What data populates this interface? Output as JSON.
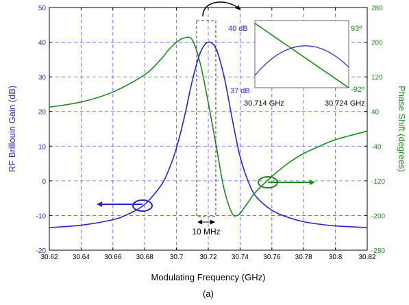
{
  "chart_data": {
    "type": "line",
    "title": "",
    "caption": "(a)",
    "xlabel": "Modulating Frequency (GHz)",
    "ylabel_left": "RF Brillouin Gain (dB)",
    "ylabel_right": "Phase Shift (degrees)",
    "xlim": [
      30.62,
      30.82
    ],
    "ylim_left": [
      -20,
      50
    ],
    "ylim_right": [
      -280,
      280
    ],
    "x_ticks": [
      "30.62",
      "30.64",
      "30.66",
      "30.68",
      "30.7",
      "30.72",
      "30.74",
      "30.76",
      "30.78",
      "30.8",
      "30.82"
    ],
    "x_tick_values": [
      30.62,
      30.64,
      30.66,
      30.68,
      30.7,
      30.72,
      30.74,
      30.76,
      30.78,
      30.8,
      30.82
    ],
    "y_left_ticks": [
      "-20",
      "-10",
      "0",
      "10",
      "20",
      "30",
      "40",
      "50"
    ],
    "y_left_tick_values": [
      -20,
      -10,
      0,
      10,
      20,
      30,
      40,
      50
    ],
    "y_right_ticks": [
      "-280",
      "-200",
      "-120",
      "-40",
      "40",
      "120",
      "200",
      "280"
    ],
    "y_right_tick_values": [
      -280,
      -200,
      -120,
      -40,
      40,
      120,
      200,
      280
    ],
    "grid": true,
    "colors": {
      "gain": "#2222dd",
      "phase": "#1a8a1a"
    },
    "series": [
      {
        "axis": "left",
        "x": [
          30.62,
          30.64,
          30.66,
          30.67,
          30.68,
          30.69,
          30.695,
          30.7,
          30.705,
          30.71,
          30.715,
          30.72,
          30.725,
          30.73,
          30.735,
          30.74,
          30.745,
          30.75,
          30.76,
          30.77,
          30.78,
          30.79,
          30.8,
          30.82
        ],
        "y": [
          -13.5,
          -12.8,
          -11.2,
          -9.5,
          -6.8,
          -1.5,
          3,
          9.5,
          18.5,
          29,
          37,
          40,
          38,
          30,
          18,
          7,
          0,
          -4.5,
          -8.5,
          -10.5,
          -11.8,
          -12.5,
          -13,
          -13.5
        ]
      },
      {
        "axis": "right",
        "x": [
          30.62,
          30.64,
          30.66,
          30.68,
          30.69,
          30.695,
          30.7,
          30.705,
          30.71,
          30.715,
          30.72,
          30.725,
          30.73,
          30.735,
          30.738,
          30.74,
          30.745,
          30.75,
          30.76,
          30.77,
          30.78,
          30.79,
          30.8,
          30.82
        ],
        "y": [
          50,
          62,
          85,
          125,
          160,
          182,
          200,
          210,
          205,
          150,
          60,
          -40,
          -140,
          -195,
          -200,
          -195,
          -170,
          -145,
          -110,
          -80,
          -57,
          -40,
          -25,
          -5
        ]
      }
    ],
    "annotations": {
      "bandwidth_label": "10 MHz",
      "inset": {
        "left_top": "40 dB",
        "left_bottom": "37 dB",
        "right_top": "93º",
        "right_bottom": "-92º",
        "x_left": "30.714 GHz",
        "x_right": "30.724 GHz"
      }
    }
  }
}
